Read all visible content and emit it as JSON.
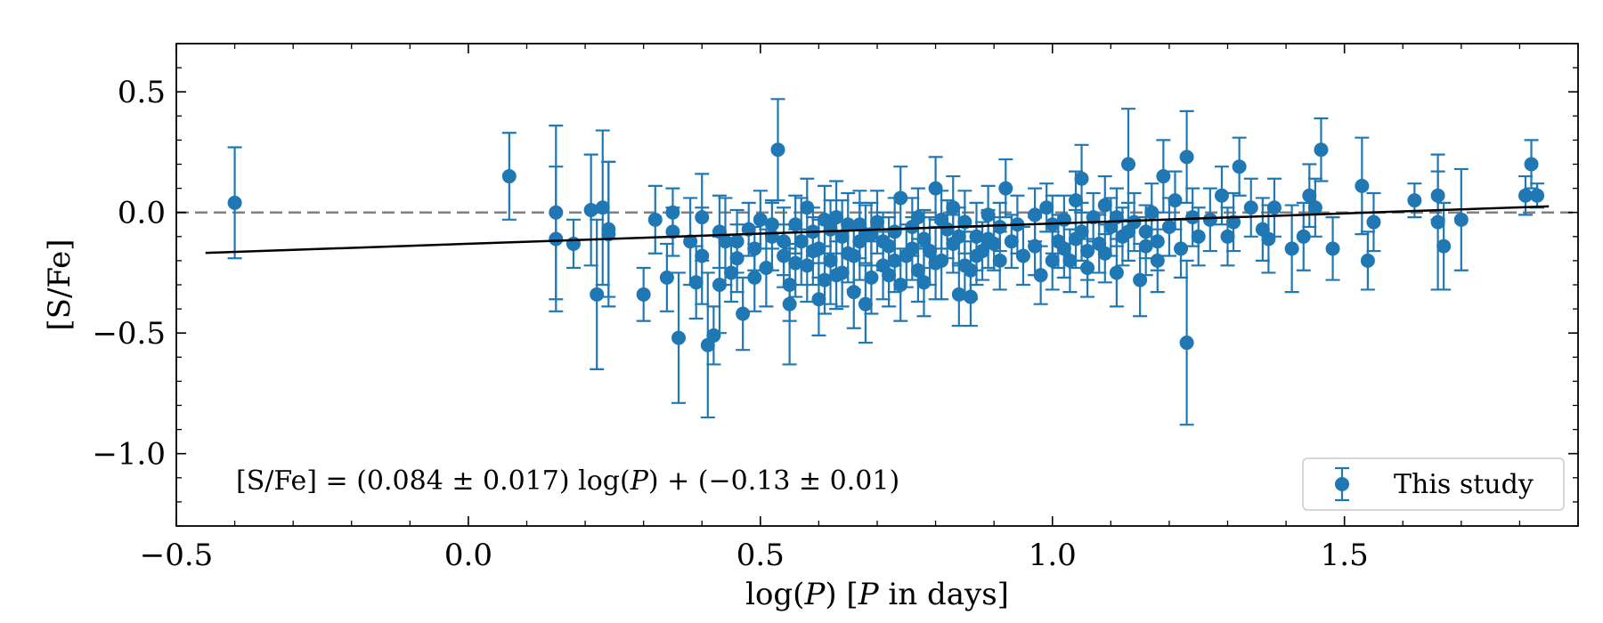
{
  "chart_data": {
    "type": "scatter",
    "title": "",
    "xlabel_parts": [
      "log(",
      "P",
      ") [",
      "P",
      " in days]"
    ],
    "ylabel": "[S/Fe]",
    "xlim": [
      -0.5,
      1.9
    ],
    "ylim": [
      -1.3,
      0.7
    ],
    "xticks": [
      -0.5,
      0.0,
      0.5,
      1.0,
      1.5
    ],
    "xtick_labels": [
      "−0.5",
      "0.0",
      "0.5",
      "1.0",
      "1.5"
    ],
    "yticks": [
      0.5,
      0.0,
      -0.5,
      -1.0
    ],
    "ytick_labels": [
      "0.5",
      "0.0",
      "−0.5",
      "−1.0"
    ],
    "reference_line": {
      "y": 0.0,
      "style": "dashed",
      "color": "#808080"
    },
    "fit_line": {
      "slope": 0.084,
      "intercept": -0.13,
      "x_range": [
        -0.45,
        1.85
      ],
      "color": "#000000"
    },
    "annotation_parts": [
      "[S/Fe] = (0.084 ± 0.017) log(",
      "P",
      ") + (−0.13 ± 0.01)"
    ],
    "legend": {
      "label": "This study",
      "position": "bottom-right"
    },
    "series": [
      {
        "name": "This study",
        "color": "#1f77b4",
        "points": [
          [
            -0.4,
            0.04,
            0.23
          ],
          [
            0.07,
            0.15,
            0.18
          ],
          [
            0.15,
            0.0,
            0.36
          ],
          [
            0.15,
            -0.11,
            0.3
          ],
          [
            0.18,
            -0.13,
            0.1
          ],
          [
            0.21,
            0.01,
            0.23
          ],
          [
            0.22,
            -0.34,
            0.31
          ],
          [
            0.23,
            0.02,
            0.32
          ],
          [
            0.24,
            -0.07,
            0.28
          ],
          [
            0.24,
            -0.09,
            0.3
          ],
          [
            0.3,
            -0.34,
            0.11
          ],
          [
            0.32,
            -0.03,
            0.14
          ],
          [
            0.34,
            -0.27,
            0.14
          ],
          [
            0.35,
            -0.08,
            0.1
          ],
          [
            0.35,
            0.0,
            0.1
          ],
          [
            0.36,
            -0.52,
            0.27
          ],
          [
            0.38,
            -0.12,
            0.18
          ],
          [
            0.39,
            -0.29,
            0.15
          ],
          [
            0.4,
            -0.02,
            0.18
          ],
          [
            0.4,
            -0.18,
            0.2
          ],
          [
            0.41,
            -0.55,
            0.3
          ],
          [
            0.42,
            -0.51,
            0.12
          ],
          [
            0.43,
            -0.08,
            0.15
          ],
          [
            0.43,
            -0.3,
            0.2
          ],
          [
            0.44,
            -0.12,
            0.18
          ],
          [
            0.45,
            -0.25,
            0.12
          ],
          [
            0.46,
            -0.19,
            0.14
          ],
          [
            0.47,
            -0.42,
            0.15
          ],
          [
            0.48,
            -0.07,
            0.11
          ],
          [
            0.49,
            -0.15,
            0.09
          ],
          [
            0.5,
            -0.03,
            0.12
          ],
          [
            0.51,
            -0.23,
            0.16
          ],
          [
            0.52,
            -0.1,
            0.14
          ],
          [
            0.53,
            0.26,
            0.21
          ],
          [
            0.54,
            -0.18,
            0.13
          ],
          [
            0.55,
            -0.3,
            0.15
          ],
          [
            0.55,
            -0.38,
            0.25
          ],
          [
            0.56,
            -0.05,
            0.12
          ],
          [
            0.57,
            -0.12,
            0.18
          ],
          [
            0.58,
            -0.22,
            0.15
          ],
          [
            0.59,
            -0.08,
            0.1
          ],
          [
            0.6,
            -0.36,
            0.15
          ],
          [
            0.6,
            -0.15,
            0.12
          ],
          [
            0.61,
            -0.03,
            0.14
          ],
          [
            0.62,
            -0.2,
            0.18
          ],
          [
            0.63,
            -0.26,
            0.14
          ],
          [
            0.64,
            -0.1,
            0.15
          ],
          [
            0.65,
            -0.05,
            0.13
          ],
          [
            0.65,
            -0.17,
            0.12
          ],
          [
            0.66,
            -0.33,
            0.15
          ],
          [
            0.67,
            -0.12,
            0.16
          ],
          [
            0.68,
            -0.38,
            0.16
          ],
          [
            0.68,
            -0.09,
            0.12
          ],
          [
            0.69,
            -0.27,
            0.15
          ],
          [
            0.7,
            -0.04,
            0.13
          ],
          [
            0.71,
            -0.22,
            0.14
          ],
          [
            0.72,
            -0.14,
            0.12
          ],
          [
            0.73,
            -0.08,
            0.14
          ],
          [
            0.74,
            -0.3,
            0.15
          ],
          [
            0.75,
            -0.18,
            0.13
          ],
          [
            0.76,
            -0.06,
            0.12
          ],
          [
            0.77,
            -0.24,
            0.13
          ],
          [
            0.78,
            -0.11,
            0.12
          ],
          [
            0.79,
            -0.16,
            0.14
          ],
          [
            0.8,
            0.1,
            0.13
          ],
          [
            0.81,
            -0.2,
            0.16
          ],
          [
            0.82,
            -0.07,
            0.12
          ],
          [
            0.83,
            -0.13,
            0.12
          ],
          [
            0.84,
            -0.34,
            0.13
          ],
          [
            0.85,
            -0.04,
            0.13
          ],
          [
            0.85,
            -0.22,
            0.14
          ],
          [
            0.86,
            -0.35,
            0.12
          ],
          [
            0.87,
            -0.1,
            0.14
          ],
          [
            0.88,
            -0.16,
            0.12
          ],
          [
            0.89,
            -0.01,
            0.12
          ],
          [
            0.9,
            -0.13,
            0.11
          ],
          [
            0.91,
            -0.06,
            0.1
          ],
          [
            0.92,
            0.1,
            0.12
          ],
          [
            0.93,
            -0.12,
            0.11
          ],
          [
            0.95,
            -0.18,
            0.12
          ],
          [
            0.97,
            -0.01,
            0.11
          ],
          [
            0.98,
            -0.26,
            0.12
          ],
          [
            0.99,
            0.02,
            0.1
          ],
          [
            1.0,
            -0.05,
            0.12
          ],
          [
            1.01,
            -0.12,
            0.11
          ],
          [
            1.02,
            -0.03,
            0.1
          ],
          [
            1.03,
            -0.2,
            0.13
          ],
          [
            1.04,
            0.05,
            0.12
          ],
          [
            1.05,
            -0.08,
            0.12
          ],
          [
            1.05,
            0.14,
            0.14
          ],
          [
            1.06,
            -0.16,
            0.12
          ],
          [
            1.07,
            -0.02,
            0.1
          ],
          [
            1.08,
            -0.13,
            0.12
          ],
          [
            1.09,
            0.03,
            0.12
          ],
          [
            1.1,
            -0.06,
            0.12
          ],
          [
            1.11,
            -0.25,
            0.14
          ],
          [
            1.12,
            -0.1,
            0.12
          ],
          [
            1.13,
            0.2,
            0.23
          ],
          [
            1.14,
            -0.04,
            0.12
          ],
          [
            1.15,
            -0.28,
            0.15
          ],
          [
            1.16,
            -0.08,
            0.11
          ],
          [
            1.17,
            0.0,
            0.12
          ],
          [
            1.18,
            -0.12,
            0.12
          ],
          [
            1.19,
            0.15,
            0.15
          ],
          [
            1.2,
            -0.06,
            0.12
          ],
          [
            1.21,
            0.05,
            0.12
          ],
          [
            1.22,
            -0.15,
            0.12
          ],
          [
            1.23,
            0.23,
            0.19
          ],
          [
            1.23,
            -0.54,
            0.34
          ],
          [
            1.24,
            -0.02,
            0.12
          ],
          [
            1.25,
            -0.1,
            0.12
          ],
          [
            1.27,
            -0.03,
            0.13
          ],
          [
            1.29,
            0.07,
            0.12
          ],
          [
            1.3,
            -0.1,
            0.12
          ],
          [
            1.31,
            -0.04,
            0.12
          ],
          [
            1.32,
            0.19,
            0.12
          ],
          [
            1.34,
            0.02,
            0.12
          ],
          [
            1.36,
            -0.07,
            0.13
          ],
          [
            1.37,
            -0.11,
            0.14
          ],
          [
            1.38,
            0.02,
            0.12
          ],
          [
            1.41,
            -0.15,
            0.18
          ],
          [
            1.43,
            -0.1,
            0.14
          ],
          [
            1.44,
            0.07,
            0.13
          ],
          [
            1.45,
            0.02,
            0.12
          ],
          [
            1.46,
            0.26,
            0.13
          ],
          [
            1.48,
            -0.15,
            0.13
          ],
          [
            1.53,
            0.11,
            0.2
          ],
          [
            1.54,
            -0.2,
            0.12
          ],
          [
            1.55,
            -0.04,
            0.12
          ],
          [
            1.62,
            0.05,
            0.07
          ],
          [
            1.66,
            0.07,
            0.1
          ],
          [
            1.66,
            -0.04,
            0.28
          ],
          [
            1.67,
            -0.14,
            0.18
          ],
          [
            1.7,
            -0.03,
            0.21
          ],
          [
            1.81,
            0.07,
            0.08
          ],
          [
            1.82,
            0.2,
            0.1
          ],
          [
            1.83,
            0.07,
            0.05
          ],
          [
            0.52,
            -0.05,
            0.1
          ],
          [
            0.56,
            -0.21,
            0.14
          ],
          [
            0.58,
            0.02,
            0.12
          ],
          [
            0.61,
            -0.28,
            0.14
          ],
          [
            0.63,
            -0.02,
            0.15
          ],
          [
            0.66,
            -0.18,
            0.14
          ],
          [
            0.69,
            -0.09,
            0.13
          ],
          [
            0.72,
            -0.26,
            0.13
          ],
          [
            0.74,
            0.06,
            0.13
          ],
          [
            0.77,
            -0.02,
            0.12
          ],
          [
            0.8,
            -0.21,
            0.15
          ],
          [
            0.83,
            0.02,
            0.13
          ],
          [
            0.86,
            -0.24,
            0.12
          ],
          [
            0.89,
            -0.11,
            0.12
          ],
          [
            0.94,
            -0.05,
            0.12
          ],
          [
            1.02,
            -0.15,
            0.12
          ],
          [
            1.06,
            -0.23,
            0.12
          ],
          [
            1.09,
            -0.17,
            0.12
          ],
          [
            1.13,
            -0.08,
            0.12
          ],
          [
            1.18,
            -0.2,
            0.13
          ],
          [
            0.46,
            -0.12,
            0.13
          ],
          [
            0.49,
            -0.27,
            0.14
          ],
          [
            0.54,
            -0.12,
            0.14
          ],
          [
            0.59,
            -0.16,
            0.14
          ],
          [
            0.64,
            -0.25,
            0.14
          ],
          [
            0.71,
            -0.12,
            0.12
          ],
          [
            0.76,
            -0.15,
            0.13
          ],
          [
            0.81,
            -0.03,
            0.12
          ],
          [
            0.87,
            -0.18,
            0.12
          ],
          [
            0.97,
            -0.14,
            0.12
          ],
          [
            1.0,
            -0.2,
            0.12
          ],
          [
            1.04,
            -0.11,
            0.12
          ],
          [
            0.62,
            -0.07,
            0.12
          ],
          [
            0.67,
            -0.05,
            0.14
          ],
          [
            0.73,
            -0.2,
            0.13
          ],
          [
            0.78,
            -0.29,
            0.14
          ],
          [
            0.84,
            -0.1,
            0.12
          ],
          [
            0.91,
            -0.2,
            0.12
          ],
          [
            1.11,
            -0.02,
            0.12
          ],
          [
            1.16,
            -0.14,
            0.12
          ]
        ]
      }
    ]
  }
}
